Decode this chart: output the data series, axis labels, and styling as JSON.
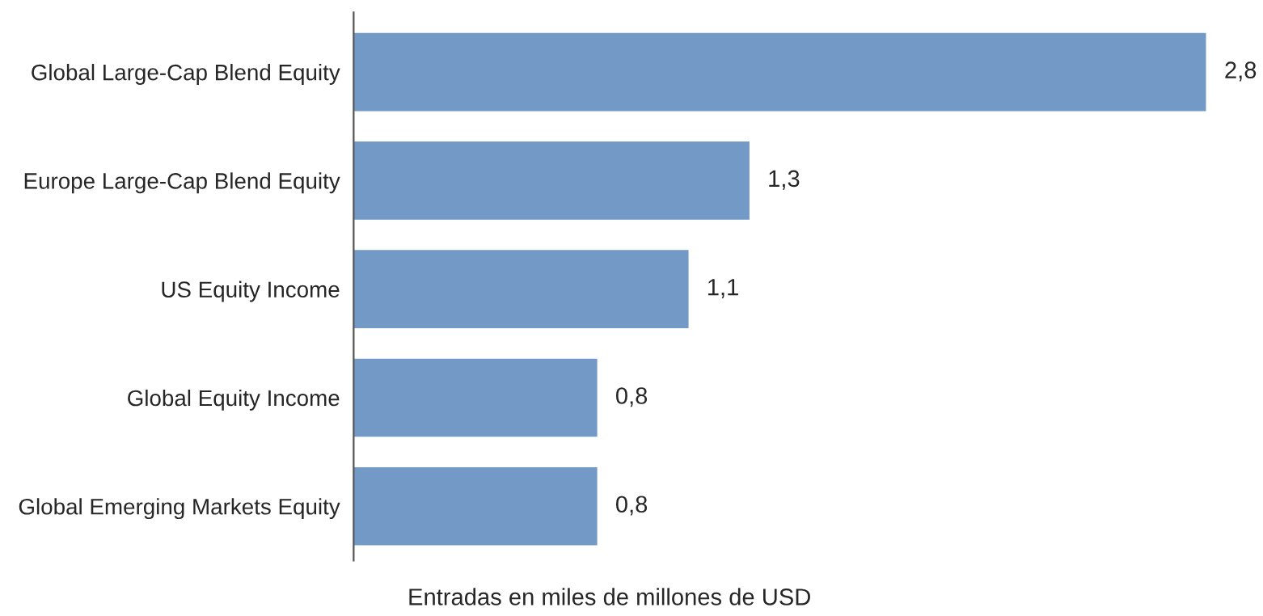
{
  "chart_data": {
    "type": "bar",
    "orientation": "horizontal",
    "categories": [
      "Global Large-Cap Blend Equity",
      "Europe Large-Cap Blend Equity",
      "US Equity Income",
      "Global Equity Income",
      "Global Emerging Markets Equity"
    ],
    "values": [
      2.8,
      1.3,
      1.1,
      0.8,
      0.8
    ],
    "value_labels": [
      "2,8",
      "1,3",
      "1,1",
      "0,8",
      "0,8"
    ],
    "color": "#7399c6",
    "xlabel": "Entradas en miles de millones de USD",
    "tick_labels": "y",
    "grid": false,
    "legend": false
  }
}
